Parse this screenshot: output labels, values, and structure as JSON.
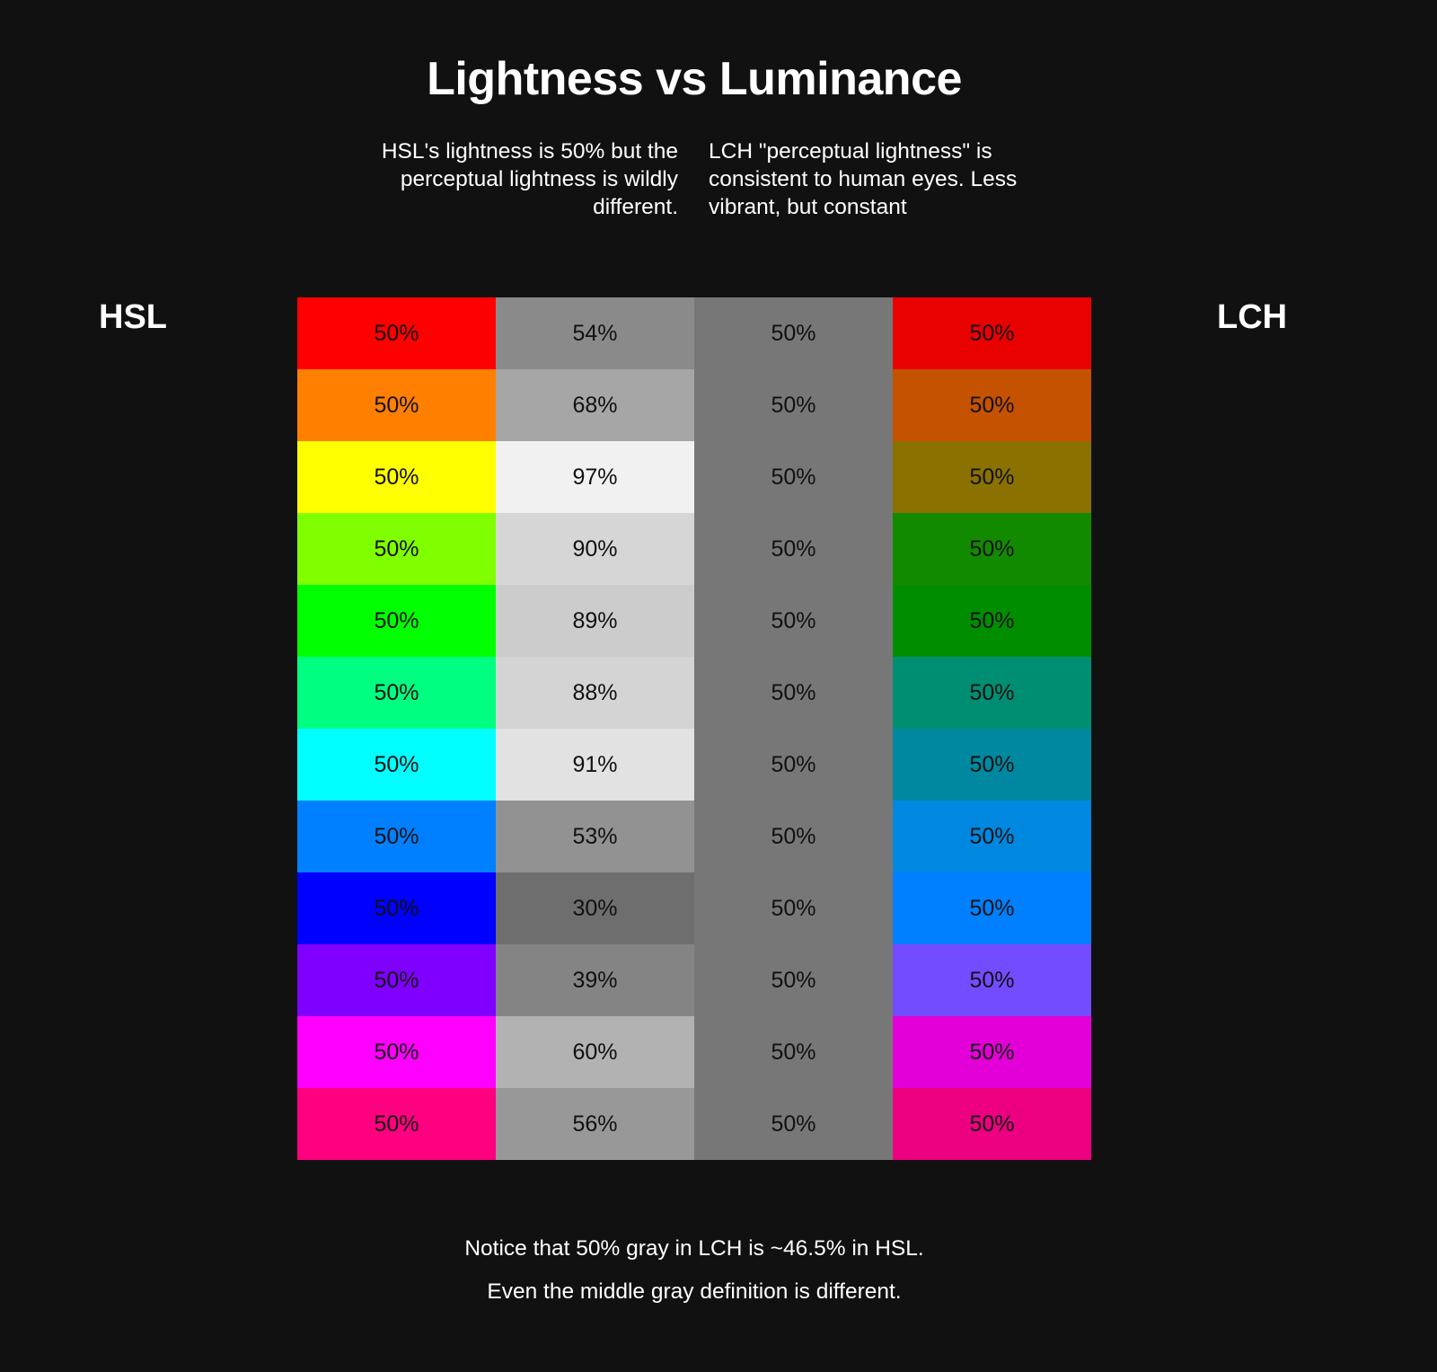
{
  "title": "Lightness vs Luminance",
  "description_left": "HSL's lightness is 50% but the perceptual lightness is wildly different.",
  "description_right": "LCH \"perceptual lightness\" is consistent to human eyes. Less vibrant, but constant",
  "label_left": "HSL",
  "label_right": "LCH",
  "colors": {
    "background": "#111111",
    "lch_gray": "#777777"
  },
  "rows": [
    {
      "hsl_color": "#ff0000",
      "hsl_label": "50%",
      "gray_color": "#8a8a8a",
      "gray_label": "54%",
      "lch_gray_label": "50%",
      "lch_color": "#e90000",
      "lch_label": "50%"
    },
    {
      "hsl_color": "#ff8000",
      "hsl_label": "50%",
      "gray_color": "#a6a6a6",
      "gray_label": "68%",
      "lch_gray_label": "50%",
      "lch_color": "#c45200",
      "lch_label": "50%"
    },
    {
      "hsl_color": "#ffff00",
      "hsl_label": "50%",
      "gray_color": "#f1f1f1",
      "gray_label": "97%",
      "lch_gray_label": "50%",
      "lch_color": "#8a7100",
      "lch_label": "50%"
    },
    {
      "hsl_color": "#80ff00",
      "hsl_label": "50%",
      "gray_color": "#d6d6d6",
      "gray_label": "90%",
      "lch_gray_label": "50%",
      "lch_color": "#128a00",
      "lch_label": "50%"
    },
    {
      "hsl_color": "#00ff00",
      "hsl_label": "50%",
      "gray_color": "#cccccc",
      "gray_label": "89%",
      "lch_gray_label": "50%",
      "lch_color": "#008e00",
      "lch_label": "50%"
    },
    {
      "hsl_color": "#00ff80",
      "hsl_label": "50%",
      "gray_color": "#d4d4d4",
      "gray_label": "88%",
      "lch_gray_label": "50%",
      "lch_color": "#008e72",
      "lch_label": "50%"
    },
    {
      "hsl_color": "#00ffff",
      "hsl_label": "50%",
      "gray_color": "#e2e2e2",
      "gray_label": "91%",
      "lch_gray_label": "50%",
      "lch_color": "#0088a0",
      "lch_label": "50%"
    },
    {
      "hsl_color": "#0080ff",
      "hsl_label": "50%",
      "gray_color": "#929292",
      "gray_label": "53%",
      "lch_gray_label": "50%",
      "lch_color": "#0088e0",
      "lch_label": "50%"
    },
    {
      "hsl_color": "#0000ff",
      "hsl_label": "50%",
      "gray_color": "#6e6e6e",
      "gray_label": "30%",
      "lch_gray_label": "50%",
      "lch_color": "#0080ff",
      "lch_label": "50%"
    },
    {
      "hsl_color": "#8000ff",
      "hsl_label": "50%",
      "gray_color": "#848484",
      "gray_label": "39%",
      "lch_gray_label": "50%",
      "lch_color": "#744cff",
      "lch_label": "50%"
    },
    {
      "hsl_color": "#ff00ff",
      "hsl_label": "50%",
      "gray_color": "#b2b2b2",
      "gray_label": "60%",
      "lch_gray_label": "50%",
      "lch_color": "#e300d8",
      "lch_label": "50%"
    },
    {
      "hsl_color": "#ff0080",
      "hsl_label": "50%",
      "gray_color": "#989898",
      "gray_label": "56%",
      "lch_gray_label": "50%",
      "lch_color": "#ec0080",
      "lch_label": "50%"
    }
  ],
  "footer_line1": "Notice that 50% gray in LCH is ~46.5% in HSL.",
  "footer_line2": "Even the middle gray definition is different."
}
